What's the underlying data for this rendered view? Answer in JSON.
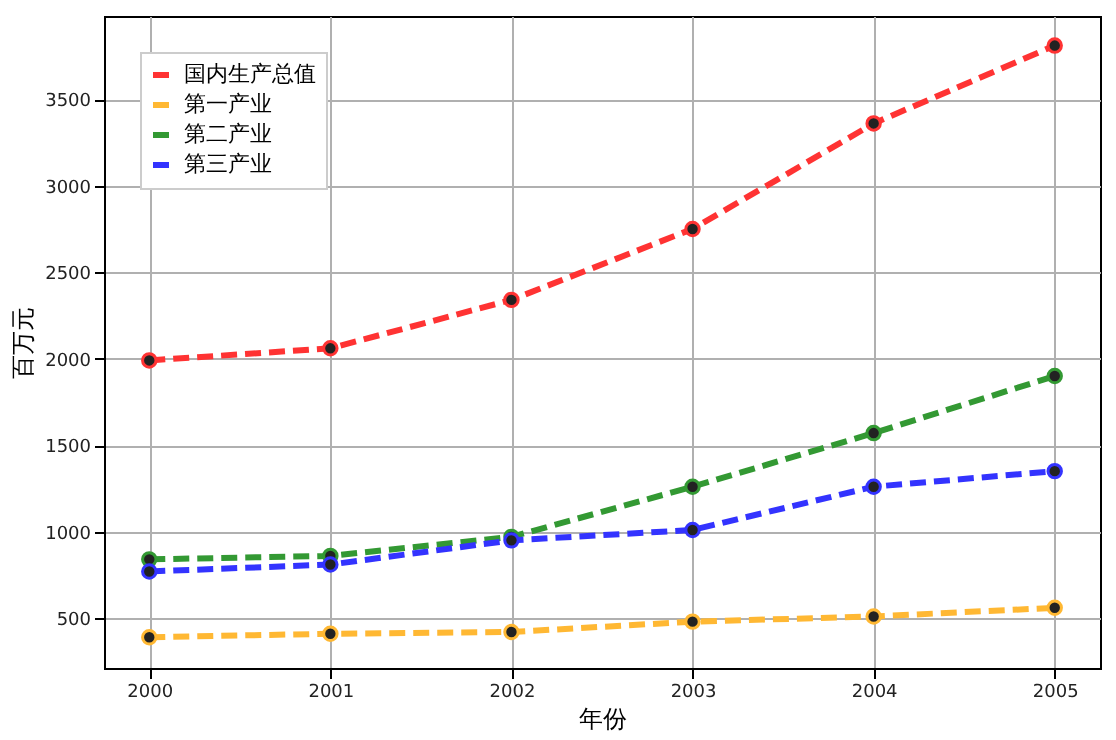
{
  "chart_data": {
    "type": "line",
    "xlabel": "年份",
    "ylabel": "百万元",
    "x": [
      2000,
      2001,
      2002,
      2003,
      2004,
      2005
    ],
    "series": [
      {
        "name": "国内生产总值",
        "color": "#ff3333",
        "values": [
          1990,
          2060,
          2340,
          2750,
          3360,
          3810
        ]
      },
      {
        "name": "第一产业",
        "color": "#ffb833",
        "values": [
          390,
          410,
          420,
          480,
          510,
          560
        ]
      },
      {
        "name": "第二产业",
        "color": "#339933",
        "values": [
          840,
          860,
          970,
          1260,
          1570,
          1900
        ]
      },
      {
        "name": "第三产业",
        "color": "#3333ff",
        "values": [
          770,
          810,
          950,
          1010,
          1260,
          1350
        ]
      }
    ],
    "xlim": [
      1999.75,
      2005.25
    ],
    "xticks": [
      2000,
      2001,
      2002,
      2003,
      2004,
      2005
    ],
    "ylim": [
      212,
      3981
    ],
    "yticks": [
      500,
      1000,
      1500,
      2000,
      2500,
      3000,
      3500
    ],
    "grid": true,
    "legend": "top left",
    "marker": "circle",
    "line_style": "dashed"
  }
}
